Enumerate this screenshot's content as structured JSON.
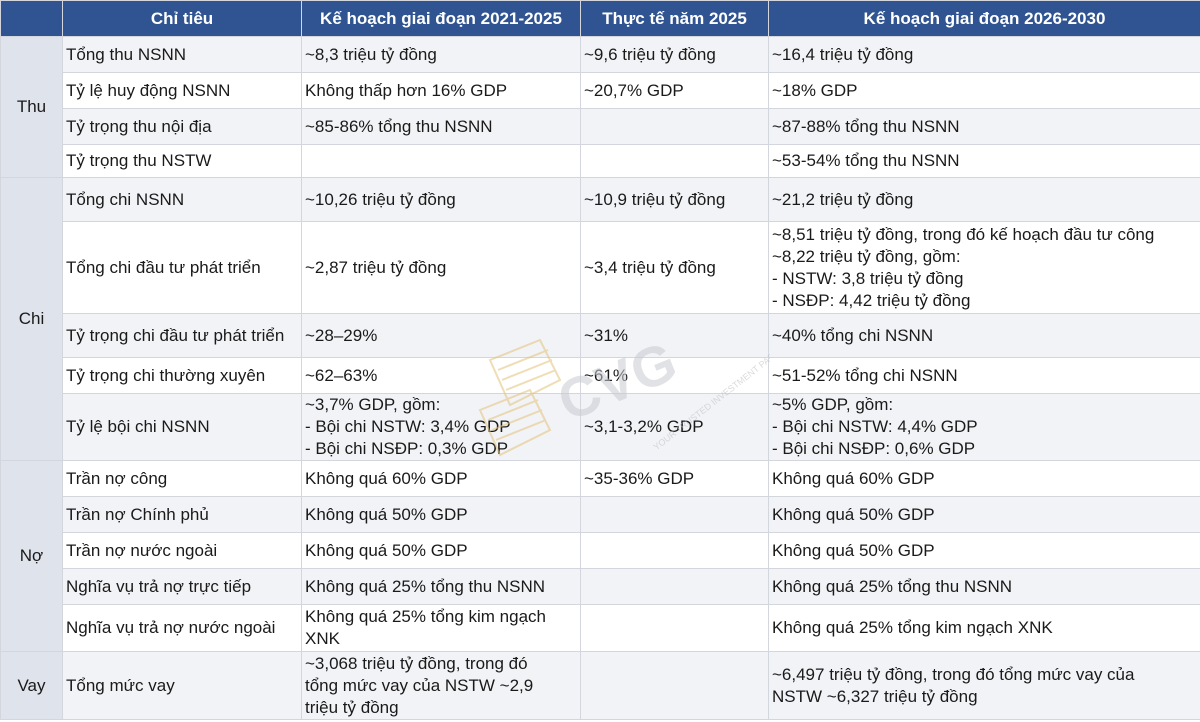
{
  "headers": [
    "Chỉ tiêu",
    "Kế hoạch giai đoạn 2021-2025",
    "Thực tế năm 2025",
    "Kế hoạch giai đoạn 2026-2030"
  ],
  "groups": {
    "thu": "Thu",
    "chi": "Chi",
    "no": "Nợ",
    "vay": "Vay"
  },
  "rows": [
    {
      "metric": "Tổng thu NSNN",
      "plan_2021_2025": [
        "~8,3 triệu tỷ đồng"
      ],
      "actual_2025": [
        "~9,6 triệu tỷ đồng"
      ],
      "plan_2026_2030": [
        "~16,4 triệu tỷ đồng"
      ]
    },
    {
      "metric": "Tỷ lệ huy động NSNN",
      "plan_2021_2025": [
        "Không thấp hơn 16% GDP"
      ],
      "actual_2025": [
        "~20,7% GDP"
      ],
      "plan_2026_2030": [
        "~18% GDP"
      ]
    },
    {
      "metric": "Tỷ trọng thu nội địa",
      "plan_2021_2025": [
        "~85-86% tổng thu NSNN"
      ],
      "actual_2025": [
        ""
      ],
      "plan_2026_2030": [
        "~87-88% tổng thu NSNN"
      ]
    },
    {
      "metric": "Tỷ trọng thu NSTW",
      "plan_2021_2025": [
        ""
      ],
      "actual_2025": [
        ""
      ],
      "plan_2026_2030": [
        "~53-54% tổng thu NSNN"
      ]
    },
    {
      "metric": "Tổng chi NSNN",
      "plan_2021_2025": [
        "~10,26 triệu tỷ đồng"
      ],
      "actual_2025": [
        "~10,9 triệu tỷ đồng"
      ],
      "plan_2026_2030": [
        "~21,2 triệu tỷ đồng"
      ]
    },
    {
      "metric": "Tổng chi đầu tư phát triển",
      "plan_2021_2025": [
        "~2,87 triệu tỷ đồng"
      ],
      "actual_2025": [
        "~3,4 triệu tỷ đồng"
      ],
      "plan_2026_2030": [
        "~8,51 triệu tỷ đồng, trong đó kế hoạch đầu tư công",
        "~8,22 triệu tỷ đồng, gồm:",
        "- NSTW: 3,8 triệu tỷ đồng",
        "- NSĐP: 4,42 triệu tỷ đồng"
      ]
    },
    {
      "metric": "Tỷ trọng chi đầu tư phát triển",
      "plan_2021_2025": [
        "~28–29%"
      ],
      "actual_2025": [
        "~31%"
      ],
      "plan_2026_2030": [
        "~40% tổng chi NSNN"
      ]
    },
    {
      "metric": "Tỷ trọng chi thường xuyên",
      "plan_2021_2025": [
        "~62–63%"
      ],
      "actual_2025": [
        "~61%"
      ],
      "plan_2026_2030": [
        "~51-52% tổng chi NSNN"
      ]
    },
    {
      "metric": "Tỷ lệ bội chi NSNN",
      "plan_2021_2025": [
        "~3,7% GDP, gồm:",
        "- Bội chi NSTW: 3,4% GDP",
        "- Bội chi NSĐP: 0,3% GDP"
      ],
      "actual_2025": [
        "~3,1-3,2% GDP"
      ],
      "plan_2026_2030": [
        "~5% GDP, gồm:",
        "- Bội chi NSTW: 4,4% GDP",
        "- Bội chi NSĐP: 0,6% GDP"
      ]
    },
    {
      "metric": "Trần nợ công",
      "plan_2021_2025": [
        "Không quá 60% GDP"
      ],
      "actual_2025": [
        "~35-36% GDP"
      ],
      "plan_2026_2030": [
        "Không quá 60% GDP"
      ]
    },
    {
      "metric": "Trần nợ Chính phủ",
      "plan_2021_2025": [
        "Không quá 50% GDP"
      ],
      "actual_2025": [
        ""
      ],
      "plan_2026_2030": [
        "Không quá 50% GDP"
      ]
    },
    {
      "metric": "Trần nợ nước ngoài",
      "plan_2021_2025": [
        "Không quá 50% GDP"
      ],
      "actual_2025": [
        ""
      ],
      "plan_2026_2030": [
        "Không quá 50% GDP"
      ]
    },
    {
      "metric": "Nghĩa vụ trả nợ trực tiếp",
      "plan_2021_2025": [
        "Không quá 25% tổng thu NSNN"
      ],
      "actual_2025": [
        ""
      ],
      "plan_2026_2030": [
        "Không quá 25% tổng thu NSNN"
      ]
    },
    {
      "metric": "Nghĩa vụ trả nợ nước ngoài",
      "plan_2021_2025": [
        "Không quá 25% tổng kim ngạch",
        "XNK"
      ],
      "actual_2025": [
        ""
      ],
      "plan_2026_2030": [
        "Không quá 25% tổng kim ngạch XNK"
      ]
    },
    {
      "metric": "Tổng mức vay",
      "plan_2021_2025": [
        "~3,068 triệu tỷ đồng, trong đó",
        "tổng mức vay của NSTW ~2,9",
        "triệu tỷ đồng"
      ],
      "actual_2025": [
        ""
      ],
      "plan_2026_2030": [
        "~6,497 triệu tỷ đồng, trong đó tổng mức vay của",
        "NSTW ~6,327 triệu tỷ đồng"
      ]
    }
  ],
  "watermark": {
    "brand": "CVG",
    "tagline": "YOUR TRUSTED INVESTMENT PARTNER"
  }
}
